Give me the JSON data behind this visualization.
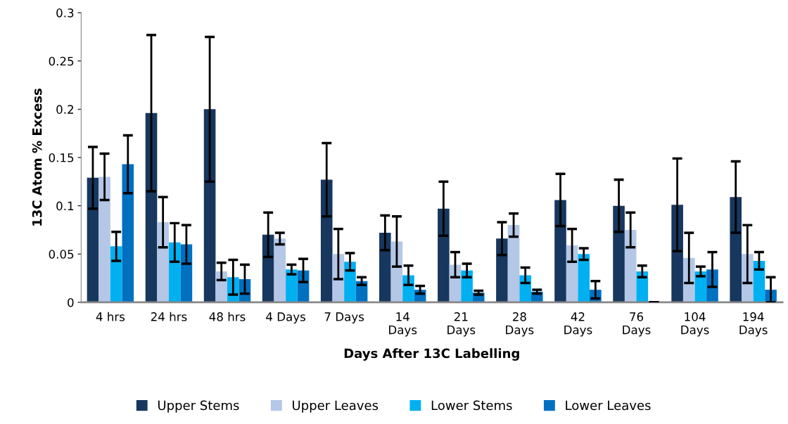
{
  "chart_data": {
    "type": "bar",
    "xlabel": "Days After 13C Labelling",
    "ylabel": "13C Atom % Excess",
    "categories": [
      "4 hrs",
      "24 hrs",
      "48 hrs",
      "4 Days",
      "7 Days",
      "14\nDays",
      "21\nDays",
      "28\nDays",
      "42\nDays",
      "76\nDays",
      "104\nDays",
      "194\nDays"
    ],
    "series": [
      {
        "name": "Upper Stems",
        "color": "#17375e",
        "values": [
          0.129,
          0.196,
          0.2,
          0.07,
          0.127,
          0.072,
          0.097,
          0.066,
          0.106,
          0.1,
          0.101,
          0.109
        ],
        "errors": [
          0.032,
          0.081,
          0.075,
          0.023,
          0.038,
          0.018,
          0.028,
          0.017,
          0.027,
          0.027,
          0.048,
          0.037
        ]
      },
      {
        "name": "Upper Leaves",
        "color": "#b4c7e7",
        "values": [
          0.13,
          0.083,
          0.032,
          0.066,
          0.05,
          0.063,
          0.039,
          0.08,
          0.059,
          0.075,
          0.046,
          0.05
        ],
        "errors": [
          0.024,
          0.026,
          0.009,
          0.006,
          0.026,
          0.026,
          0.013,
          0.012,
          0.017,
          0.018,
          0.026,
          0.03
        ]
      },
      {
        "name": "Lower Stems",
        "color": "#00b0f0",
        "values": [
          0.058,
          0.062,
          0.026,
          0.034,
          0.042,
          0.028,
          0.033,
          0.028,
          0.05,
          0.032,
          0.032,
          0.043
        ],
        "errors": [
          0.015,
          0.02,
          0.018,
          0.005,
          0.009,
          0.01,
          0.007,
          0.008,
          0.006,
          0.006,
          0.005,
          0.009
        ]
      },
      {
        "name": "Lower Leaves",
        "color": "#0070c0",
        "values": [
          0.143,
          0.06,
          0.024,
          0.033,
          0.022,
          0.013,
          0.01,
          0.011,
          0.013,
          null,
          0.034,
          0.013
        ],
        "errors": [
          0.03,
          0.02,
          0.015,
          0.012,
          0.004,
          0.004,
          0.002,
          0.002,
          0.009,
          null,
          0.018,
          0.013
        ]
      }
    ],
    "ylim": [
      0,
      0.3
    ],
    "yticks": [
      0,
      0.05,
      0.1,
      0.15,
      0.2,
      0.25,
      0.3
    ],
    "grid": false,
    "legend": "bottom"
  }
}
